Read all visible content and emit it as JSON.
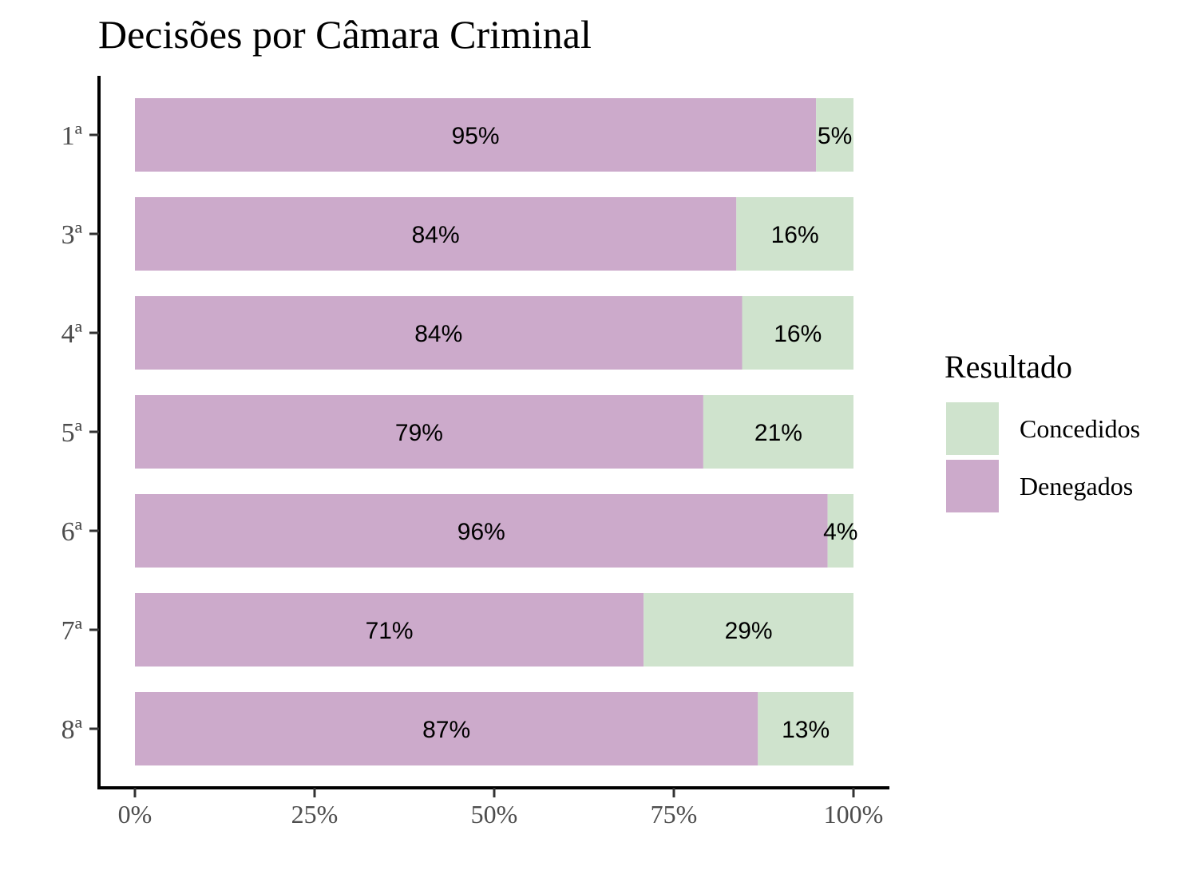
{
  "chart_data": {
    "type": "bar",
    "orientation": "horizontal",
    "stacked": true,
    "title": "Decisões por Câmara Criminal",
    "xlabel": "",
    "ylabel": "",
    "categories": [
      "1ª",
      "3ª",
      "4ª",
      "5ª",
      "6ª",
      "7ª",
      "8ª"
    ],
    "x_ticks": [
      "0%",
      "25%",
      "50%",
      "75%",
      "100%"
    ],
    "x_tick_values": [
      0,
      0.25,
      0.5,
      0.75,
      1
    ],
    "xlim": [
      0,
      1
    ],
    "series": [
      {
        "name": "Denegados",
        "color": "#CCAACB",
        "values": [
          0.948,
          0.837,
          0.845,
          0.791,
          0.964,
          0.708,
          0.867
        ],
        "labels": [
          "95%",
          "84%",
          "84%",
          "79%",
          "96%",
          "71%",
          "87%"
        ]
      },
      {
        "name": "Concedidos",
        "color": "#CFE3CD",
        "values": [
          0.052,
          0.163,
          0.155,
          0.209,
          0.036,
          0.292,
          0.133
        ],
        "labels": [
          "5%",
          "16%",
          "16%",
          "21%",
          "4%",
          "29%",
          "13%"
        ]
      }
    ],
    "legend": {
      "title": "Resultado",
      "position": "right",
      "entries": [
        "Concedidos",
        "Denegados"
      ]
    },
    "grid": false
  }
}
